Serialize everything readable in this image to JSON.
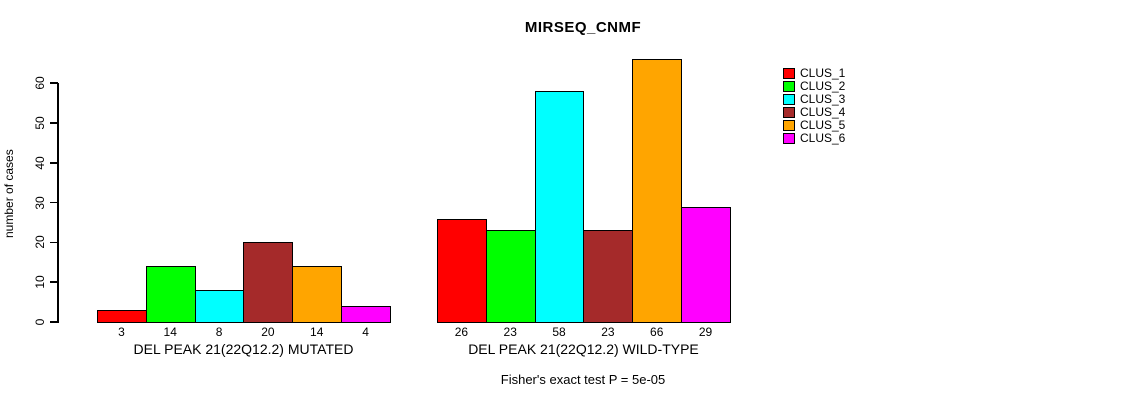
{
  "chart_data": {
    "type": "bar",
    "title": "MIRSEQ_CNMF",
    "ylabel": "number of cases",
    "xlabel": "",
    "ylim": [
      0,
      60
    ],
    "yticks": [
      0,
      10,
      20,
      30,
      40,
      50,
      60
    ],
    "grid": false,
    "legend_position": "right",
    "categories": [
      "DEL PEAK 21(22Q12.2) MUTATED",
      "DEL PEAK 21(22Q12.2) WILD-TYPE"
    ],
    "series": [
      {
        "name": "CLUS_1",
        "color": "#ff0000",
        "values": [
          3,
          26
        ]
      },
      {
        "name": "CLUS_2",
        "color": "#00ff00",
        "values": [
          14,
          23
        ]
      },
      {
        "name": "CLUS_3",
        "color": "#00ffff",
        "values": [
          8,
          58
        ]
      },
      {
        "name": "CLUS_4",
        "color": "#a52a2a",
        "values": [
          20,
          23
        ]
      },
      {
        "name": "CLUS_5",
        "color": "#ffa500",
        "values": [
          14,
          66
        ]
      },
      {
        "name": "CLUS_6",
        "color": "#ff00ff",
        "values": [
          4,
          29
        ]
      }
    ],
    "bar_value_labels": [
      [
        3,
        14,
        8,
        20,
        14,
        4
      ],
      [
        26,
        23,
        58,
        23,
        66,
        29
      ]
    ],
    "annotation": "Fisher's exact test P = 5e-05"
  }
}
